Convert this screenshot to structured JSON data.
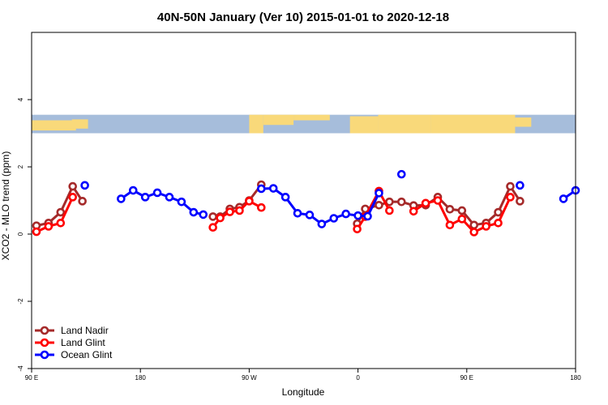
{
  "chart_data": {
    "type": "line",
    "title": "40N-50N January (Ver 10)   2015-01-01 to 2020-12-18",
    "xlabel": "Longitude",
    "ylabel": "XCO2 - MLO trend (ppm)",
    "xlim": [
      -90,
      180
    ],
    "ylim": [
      -4,
      6
    ],
    "x_ticks": [
      {
        "value": -90,
        "label": "90 E"
      },
      {
        "value": -36,
        "label": "180"
      },
      {
        "value": 18,
        "label": "90 W"
      },
      {
        "value": 72,
        "label": "0"
      },
      {
        "value": 126,
        "label": "90 E"
      },
      {
        "value": 180,
        "label": "180"
      }
    ],
    "y_ticks": [
      {
        "value": -4,
        "label": "-4"
      },
      {
        "value": -2,
        "label": "-2"
      },
      {
        "value": 0,
        "label": "0"
      },
      {
        "value": 2,
        "label": "2"
      },
      {
        "value": 4,
        "label": "4"
      }
    ],
    "map_band": {
      "ylim": [
        3,
        3.55
      ],
      "ocean_color": "#A6BDDB",
      "land_color": "#F9D97A"
    },
    "legend_position": "bottom-left",
    "series": [
      {
        "name": "Land Nadir",
        "color": "#A52A2A",
        "segments": [
          [
            [
              -87.6,
              0.25
            ],
            [
              -81.6,
              0.33
            ],
            [
              -75.6,
              0.65
            ],
            [
              -69.6,
              1.42
            ],
            [
              -64.8,
              0.98
            ]
          ],
          [
            [
              0,
              0.52
            ],
            [
              3.6,
              0.52
            ],
            [
              8.4,
              0.75
            ],
            [
              13.2,
              0.8
            ],
            [
              18,
              1.0
            ],
            [
              24,
              1.47
            ]
          ],
          [
            [
              71.6,
              0.31
            ],
            [
              75.6,
              0.75
            ],
            [
              82.4,
              0.86
            ],
            [
              87.6,
              0.96
            ],
            [
              93.6,
              0.96
            ],
            [
              99.6,
              0.85
            ],
            [
              105.6,
              0.86
            ],
            [
              111.6,
              1.1
            ],
            [
              117.6,
              0.74
            ],
            [
              123.6,
              0.7
            ],
            [
              129.6,
              0.27
            ],
            [
              135.6,
              0.33
            ],
            [
              141.6,
              0.65
            ],
            [
              147.6,
              1.42
            ],
            [
              152.4,
              0.98
            ]
          ]
        ]
      },
      {
        "name": "Land Glint",
        "color": "#FF0000",
        "segments": [
          [
            [
              -87.6,
              0.07
            ],
            [
              -81.6,
              0.23
            ],
            [
              -75.6,
              0.33
            ],
            [
              -69.6,
              1.1
            ]
          ],
          [
            [
              0,
              0.2
            ],
            [
              3.6,
              0.48
            ],
            [
              8.4,
              0.66
            ],
            [
              13.2,
              0.7
            ],
            [
              18,
              0.98
            ],
            [
              24,
              0.79
            ]
          ],
          [
            [
              71.6,
              0.15
            ],
            [
              75.6,
              0.52
            ],
            [
              82.4,
              1.28
            ],
            [
              87.6,
              0.7
            ]
          ],
          [
            [
              99.6,
              0.68
            ],
            [
              105.6,
              0.92
            ],
            [
              111.6,
              1.0
            ],
            [
              117.6,
              0.27
            ],
            [
              123.6,
              0.45
            ],
            [
              129.6,
              0.06
            ],
            [
              135.6,
              0.23
            ],
            [
              141.6,
              0.33
            ],
            [
              147.6,
              1.1
            ]
          ]
        ]
      },
      {
        "name": "Ocean Glint",
        "color": "#0000FF",
        "segments": [
          [
            [
              -63.6,
              1.45
            ]
          ],
          [
            [
              -45.6,
              1.05
            ],
            [
              -39.6,
              1.3
            ],
            [
              -33.6,
              1.1
            ],
            [
              -27.6,
              1.23
            ],
            [
              -21.6,
              1.1
            ],
            [
              -15.6,
              0.96
            ],
            [
              -9.6,
              0.65
            ],
            [
              -4.8,
              0.58
            ]
          ],
          [
            [
              24,
              1.35
            ],
            [
              30,
              1.36
            ],
            [
              36,
              1.1
            ],
            [
              42,
              0.62
            ],
            [
              48,
              0.57
            ],
            [
              54,
              0.3
            ],
            [
              60,
              0.47
            ],
            [
              66,
              0.6
            ],
            [
              72,
              0.55
            ],
            [
              76.8,
              0.53
            ],
            [
              82.4,
              1.22
            ]
          ],
          [
            [
              93.6,
              1.78
            ]
          ],
          [
            [
              152.4,
              1.45
            ]
          ],
          [
            [
              174,
              1.05
            ],
            [
              180,
              1.3
            ]
          ]
        ]
      }
    ]
  }
}
